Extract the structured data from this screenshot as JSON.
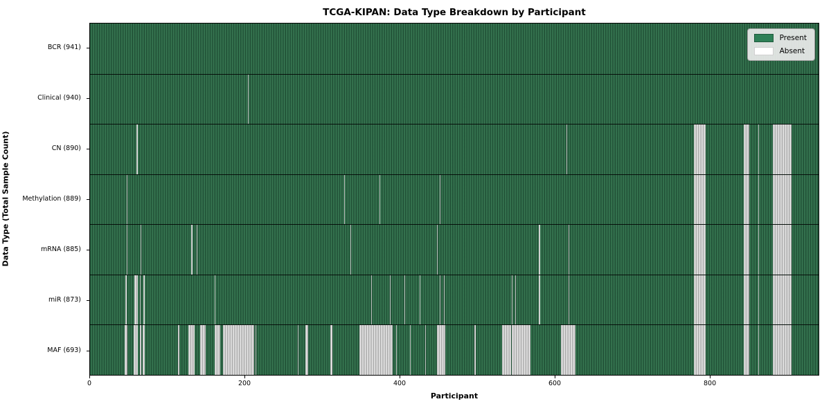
{
  "chart_data": {
    "type": "heatmap",
    "title": "TCGA-KIPAN: Data Type Breakdown by Participant",
    "xlabel": "Participant",
    "ylabel": "Data Type (Total Sample Count)",
    "x_ticks": [
      0,
      200,
      400,
      600,
      800
    ],
    "x_max": 941,
    "grid": false,
    "legend_position": "upper right",
    "legend": [
      {
        "label": "Present",
        "color": "#2e8057"
      },
      {
        "label": "Absent",
        "color": "#ffffff"
      }
    ],
    "colors": {
      "present_fill": "#2f6d4a",
      "present_edge": "#1f4c33",
      "absent_fill": "#f0f0f0",
      "absent_edge": "#9e9e9e",
      "plot_border": "#000000",
      "legend_bg": "#ececec"
    },
    "rows": [
      {
        "data_type": "BCR",
        "count": 941,
        "label": "BCR (941)",
        "absent_ranges": []
      },
      {
        "data_type": "Clinical",
        "count": 940,
        "label": "Clinical (940)",
        "absent_ranges": [
          [
            204,
            205
          ]
        ]
      },
      {
        "data_type": "CN",
        "count": 890,
        "label": "CN (890)",
        "absent_ranges": [
          [
            60,
            62
          ],
          [
            615,
            616
          ],
          [
            780,
            795
          ],
          [
            844,
            852
          ],
          [
            863,
            864
          ],
          [
            882,
            906
          ]
        ]
      },
      {
        "data_type": "Methylation",
        "count": 889,
        "label": "Methylation (889)",
        "absent_ranges": [
          [
            47,
            48
          ],
          [
            328,
            329
          ],
          [
            374,
            375
          ],
          [
            452,
            453
          ],
          [
            780,
            795
          ],
          [
            844,
            852
          ],
          [
            863,
            864
          ],
          [
            882,
            906
          ]
        ]
      },
      {
        "data_type": "mRNA",
        "count": 885,
        "label": "mRNA (885)",
        "absent_ranges": [
          [
            47,
            48
          ],
          [
            65,
            66
          ],
          [
            131,
            132
          ],
          [
            138,
            139
          ],
          [
            336,
            337
          ],
          [
            448,
            449
          ],
          [
            580,
            581
          ],
          [
            618,
            619
          ],
          [
            780,
            795
          ],
          [
            844,
            852
          ],
          [
            863,
            864
          ],
          [
            882,
            906
          ]
        ]
      },
      {
        "data_type": "miR",
        "count": 873,
        "label": "miR (873)",
        "absent_ranges": [
          [
            46,
            47
          ],
          [
            57,
            62
          ],
          [
            64,
            65
          ],
          [
            69,
            71
          ],
          [
            161,
            162
          ],
          [
            363,
            364
          ],
          [
            387,
            388
          ],
          [
            406,
            407
          ],
          [
            426,
            427
          ],
          [
            452,
            453
          ],
          [
            457,
            458
          ],
          [
            545,
            546
          ],
          [
            549,
            550
          ],
          [
            580,
            581
          ],
          [
            618,
            619
          ],
          [
            780,
            795
          ],
          [
            844,
            852
          ],
          [
            863,
            864
          ],
          [
            882,
            906
          ]
        ]
      },
      {
        "data_type": "MAF",
        "count": 693,
        "label": "MAF (693)",
        "absent_ranges": [
          [
            45,
            48
          ],
          [
            56,
            62
          ],
          [
            64,
            66
          ],
          [
            68,
            71
          ],
          [
            114,
            115
          ],
          [
            127,
            135
          ],
          [
            142,
            149
          ],
          [
            161,
            168
          ],
          [
            172,
            212
          ],
          [
            214,
            215
          ],
          [
            268,
            269
          ],
          [
            278,
            282
          ],
          [
            310,
            313
          ],
          [
            348,
            391
          ],
          [
            395,
            396
          ],
          [
            413,
            414
          ],
          [
            433,
            434
          ],
          [
            448,
            459
          ],
          [
            496,
            498
          ],
          [
            532,
            544
          ],
          [
            545,
            569
          ],
          [
            608,
            627
          ],
          [
            780,
            795
          ],
          [
            844,
            852
          ],
          [
            863,
            864
          ],
          [
            882,
            906
          ]
        ]
      }
    ]
  }
}
